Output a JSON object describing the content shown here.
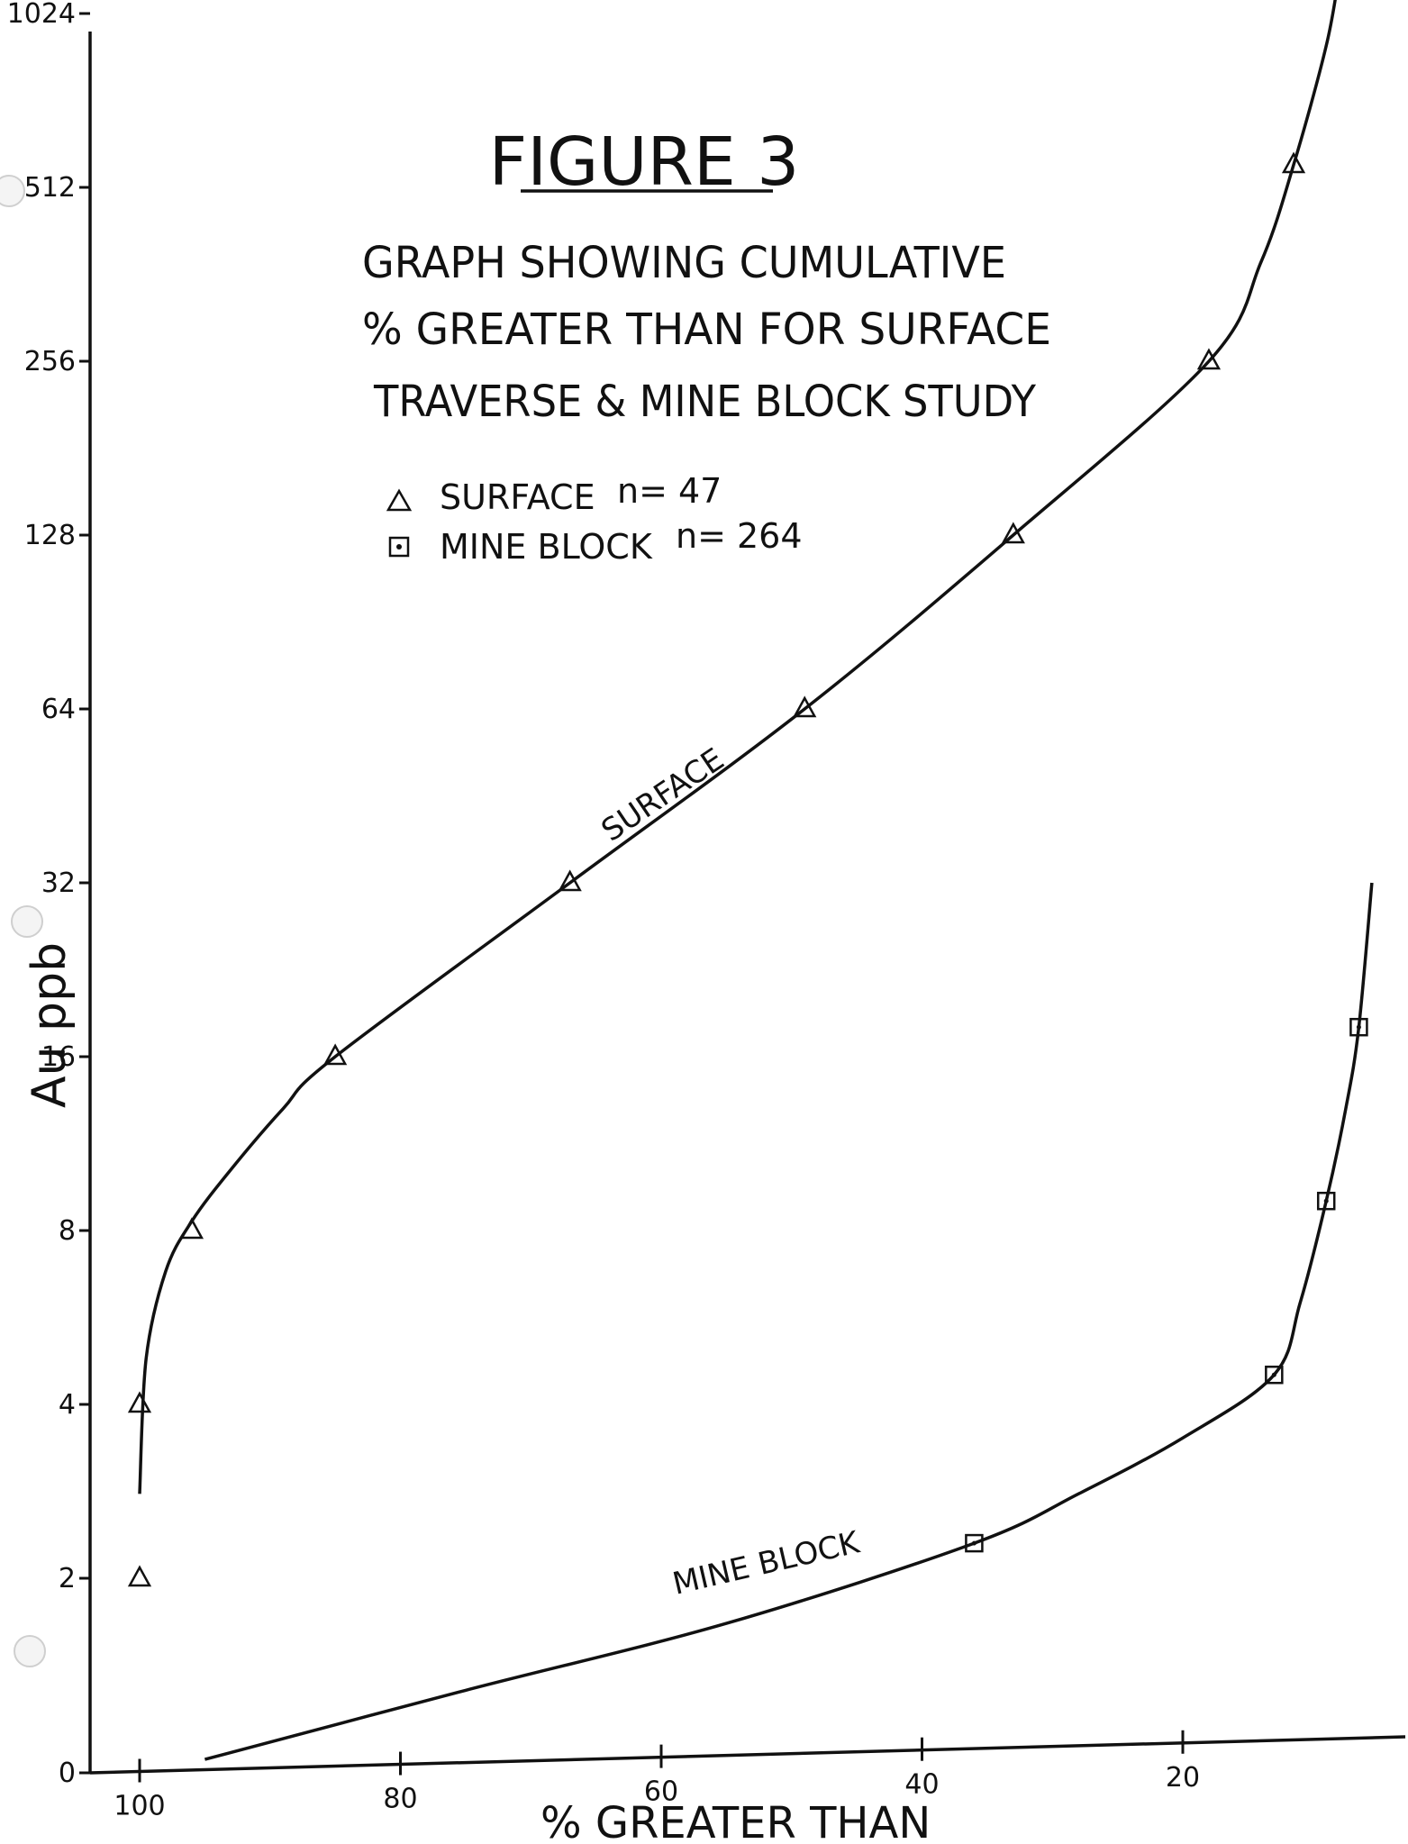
{
  "chart_data": {
    "type": "line",
    "title": "FIGURE 3",
    "subtitle": [
      "GRAPH SHOWING CUMULATIVE",
      "% GREATER THAN FOR SURFACE",
      "TRAVERSE & MINE BLOCK STUDY"
    ],
    "xlabel": "% GREATER THAN",
    "ylabel": "Au ppb",
    "x_reversed": true,
    "xlim": [
      100,
      4
    ],
    "x_ticks": [
      {
        "value": 100,
        "label": "100"
      },
      {
        "value": 80,
        "label": "80"
      },
      {
        "value": 60,
        "label": "60"
      },
      {
        "value": 40,
        "label": "40"
      },
      {
        "value": 20,
        "label": "20"
      }
    ],
    "y_scale": "log2",
    "y_ticks": [
      {
        "value": 0.5,
        "label": "0"
      },
      {
        "value": 2,
        "label": "2"
      },
      {
        "value": 4,
        "label": "4"
      },
      {
        "value": 8,
        "label": "8"
      },
      {
        "value": 16,
        "label": "16"
      },
      {
        "value": 32,
        "label": "32"
      },
      {
        "value": 64,
        "label": "64"
      },
      {
        "value": 128,
        "label": "128"
      },
      {
        "value": 256,
        "label": "256"
      },
      {
        "value": 512,
        "label": "512"
      },
      {
        "value": 1024,
        "label": "1024"
      }
    ],
    "legend": {
      "placement": "top-center",
      "entries": [
        {
          "marker": "triangle",
          "label": "SURFACE",
          "n_label": "n= 47"
        },
        {
          "marker": "square",
          "label": "MINE BLOCK",
          "n_label": "n= 264"
        }
      ]
    },
    "series": [
      {
        "name": "SURFACE",
        "marker": "triangle",
        "points": [
          {
            "x": 100,
            "y": 2
          },
          {
            "x": 100,
            "y": 4
          },
          {
            "x": 96,
            "y": 8
          },
          {
            "x": 85,
            "y": 16
          },
          {
            "x": 67,
            "y": 32
          },
          {
            "x": 49,
            "y": 64
          },
          {
            "x": 33,
            "y": 128
          },
          {
            "x": 18,
            "y": 256
          },
          {
            "x": 11.5,
            "y": 560
          }
        ],
        "curve": [
          {
            "x": 100,
            "y": 2.8
          },
          {
            "x": 99.5,
            "y": 4.8
          },
          {
            "x": 98,
            "y": 6.8
          },
          {
            "x": 96,
            "y": 8.3
          },
          {
            "x": 93,
            "y": 10.2
          },
          {
            "x": 89,
            "y": 13
          },
          {
            "x": 85,
            "y": 16
          },
          {
            "x": 67,
            "y": 32
          },
          {
            "x": 49,
            "y": 64
          },
          {
            "x": 33,
            "y": 128
          },
          {
            "x": 18,
            "y": 256
          },
          {
            "x": 14,
            "y": 380
          },
          {
            "x": 11.5,
            "y": 560
          },
          {
            "x": 9,
            "y": 900
          },
          {
            "x": 8,
            "y": 1200
          }
        ],
        "curve_label": "SURFACE"
      },
      {
        "name": "MINE BLOCK",
        "marker": "square",
        "points": [
          {
            "x": 36,
            "y": 2.3
          },
          {
            "x": 13,
            "y": 4.5
          },
          {
            "x": 9,
            "y": 9
          },
          {
            "x": 6.5,
            "y": 18
          }
        ],
        "curve": [
          {
            "x": 95,
            "y": 0.55
          },
          {
            "x": 75,
            "y": 0.9
          },
          {
            "x": 55,
            "y": 1.45
          },
          {
            "x": 36,
            "y": 2.3
          },
          {
            "x": 28,
            "y": 2.8
          },
          {
            "x": 20,
            "y": 3.5
          },
          {
            "x": 13,
            "y": 4.5
          },
          {
            "x": 11,
            "y": 6
          },
          {
            "x": 9,
            "y": 9
          },
          {
            "x": 7.5,
            "y": 13
          },
          {
            "x": 6.5,
            "y": 18
          },
          {
            "x": 5.5,
            "y": 32
          }
        ],
        "curve_label": "MINE BLOCK"
      }
    ]
  }
}
